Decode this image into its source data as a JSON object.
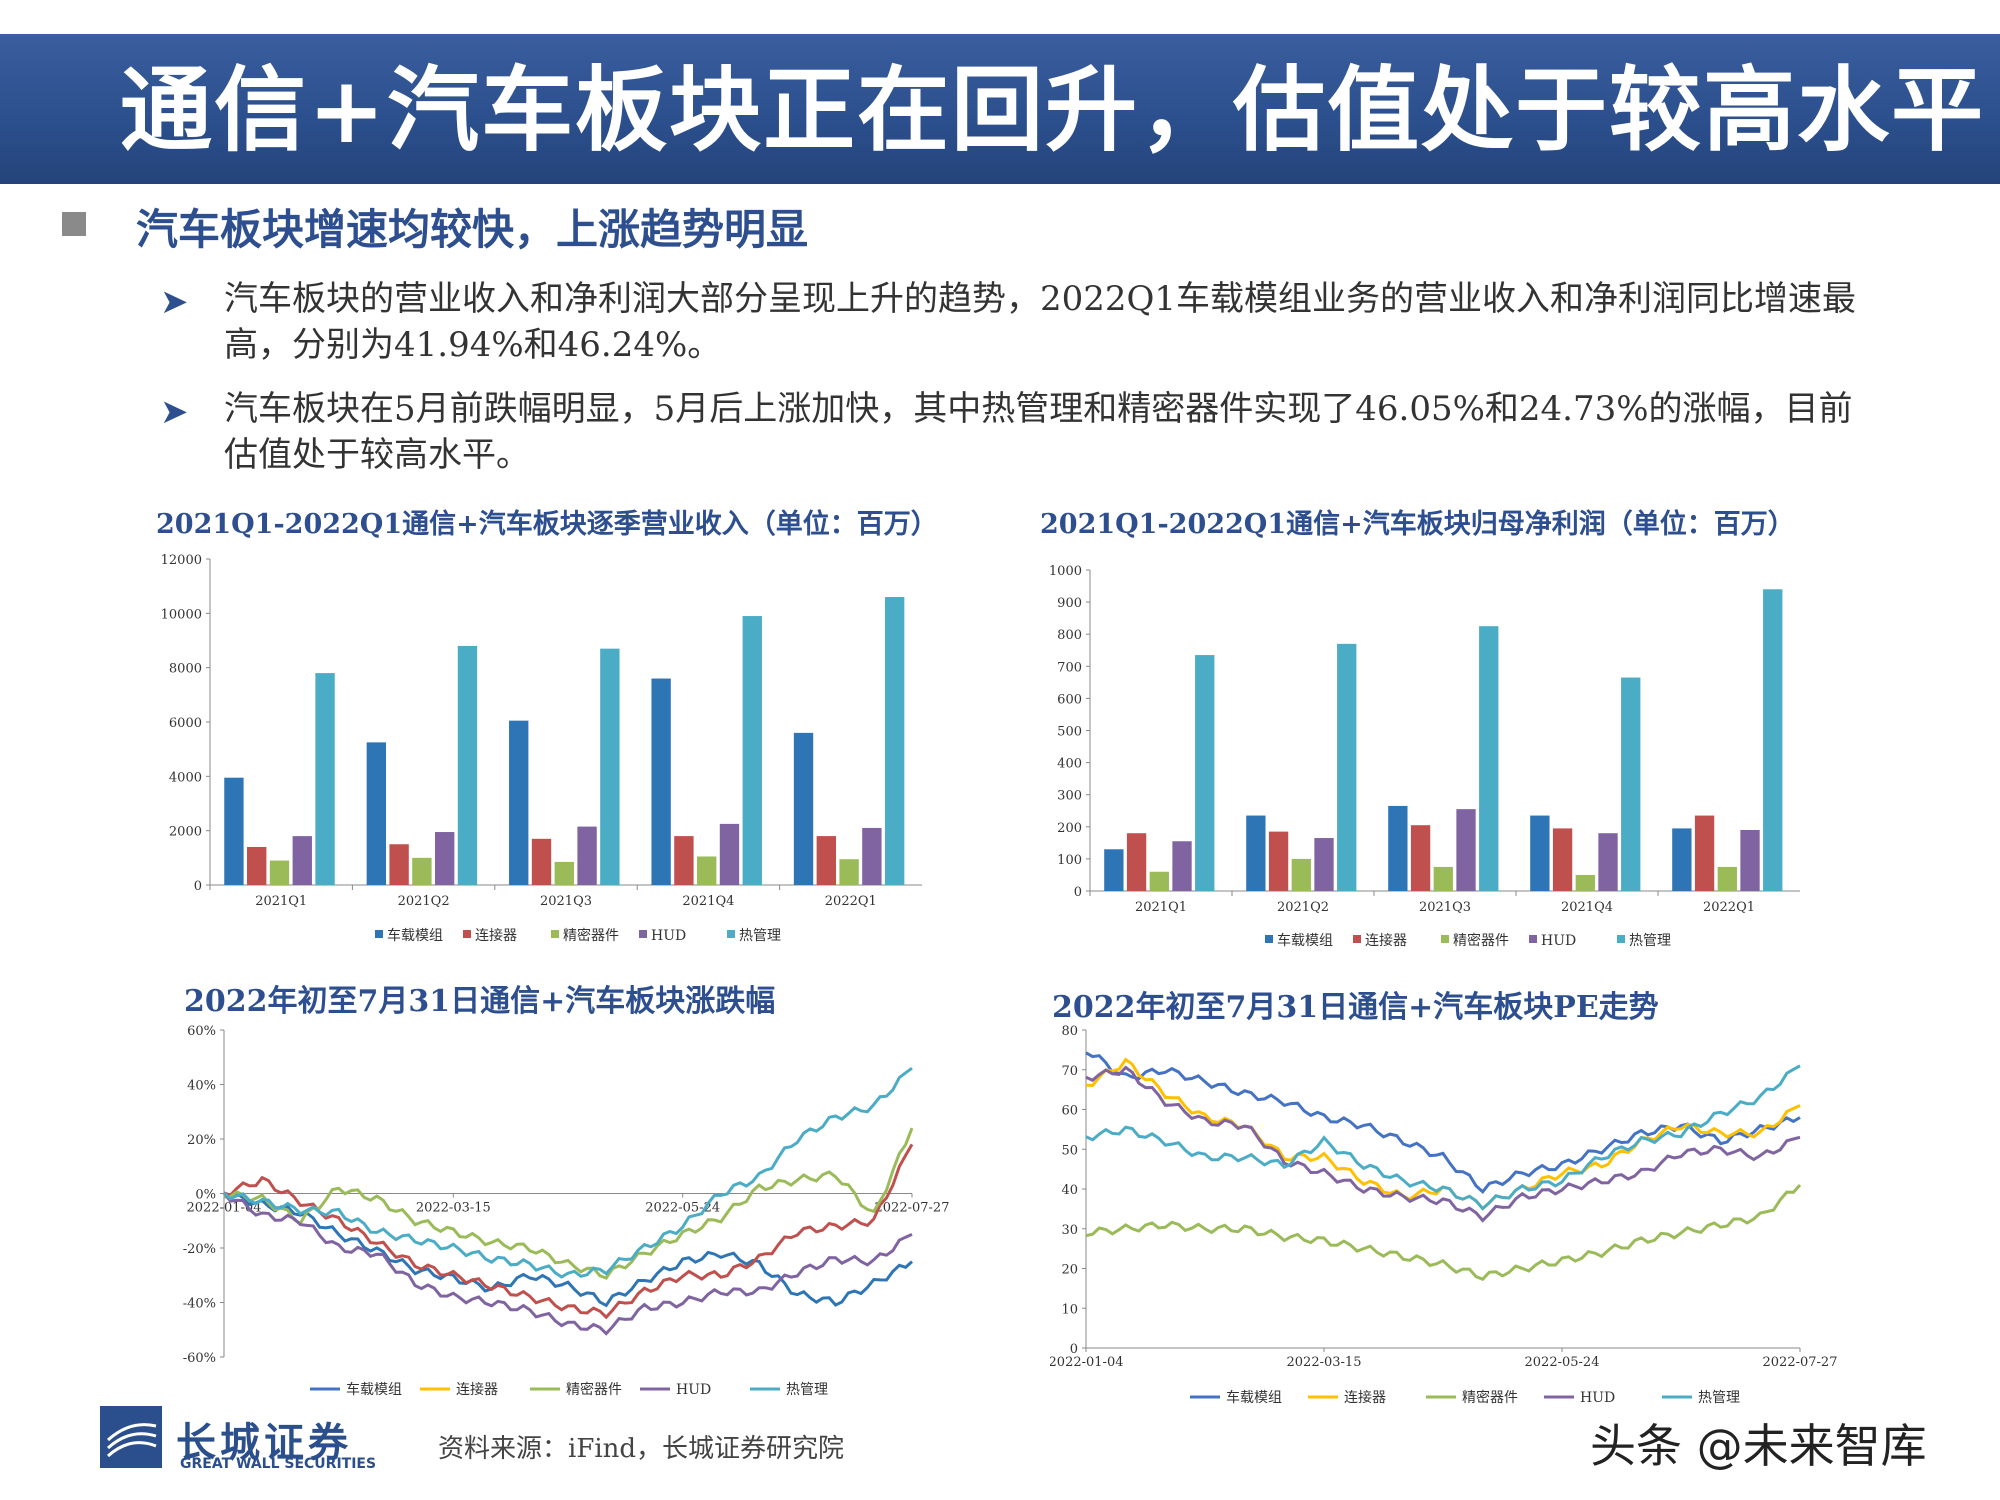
{
  "title": "通信+汽车板块正在回升，估值处于较高水平",
  "subheading": "汽车板块增速均较快，上涨趋势明显",
  "paragraphs": [
    "汽车板块的营业收入和净利润大部分呈现上升的趋势，2022Q1车载模组业务的营业收入和净利润同比增速最高，分别为41.94%和46.24%。",
    "汽车板块在5月前跌幅明显，5月后上涨加快，其中热管理和精密器件实现了46.05%和24.73%的涨幅，目前估值处于较高水平。"
  ],
  "bullet_icon": "arrow-bullet-icon",
  "source_text": "资料来源：iFind，长城证券研究院",
  "logo": {
    "cn": "长城证券",
    "en": "GREAT WALL SECURITIES"
  },
  "watermark": "头条 @未来智库",
  "colors": {
    "车载模组": "#2e75b6",
    "连接器": "#c0504d",
    "精密器件": "#9bbb59",
    "HUD": "#8064a2",
    "热管理": "#4bacc6",
    "line_车载模组": "#4472c4",
    "line_连接器": "#ffc000",
    "title_bar": "#2b4f8c"
  },
  "chart_data": [
    {
      "id": "revenue",
      "type": "bar",
      "title": "2021Q1-2022Q1通信+汽车板块逐季营业收入（单位：百万）",
      "categories": [
        "2021Q1",
        "2021Q2",
        "2021Q3",
        "2021Q4",
        "2022Q1"
      ],
      "series": [
        {
          "name": "车载模组",
          "values": [
            3950,
            5250,
            6050,
            7600,
            5600
          ]
        },
        {
          "name": "连接器",
          "values": [
            1400,
            1500,
            1700,
            1800,
            1800
          ]
        },
        {
          "name": "精密器件",
          "values": [
            900,
            1000,
            850,
            1050,
            950
          ]
        },
        {
          "name": "HUD",
          "values": [
            1800,
            1950,
            2150,
            2250,
            2100
          ]
        },
        {
          "name": "热管理",
          "values": [
            7800,
            8800,
            8700,
            9900,
            10600
          ]
        }
      ],
      "ylim": [
        0,
        12000
      ],
      "yticks": [
        "0",
        "2000",
        "4000",
        "6000",
        "8000",
        "10000",
        "12000"
      ]
    },
    {
      "id": "profit",
      "type": "bar",
      "title": "2021Q1-2022Q1通信+汽车板块归母净利润（单位：百万）",
      "categories": [
        "2021Q1",
        "2021Q2",
        "2021Q3",
        "2021Q4",
        "2022Q1"
      ],
      "series": [
        {
          "name": "车载模组",
          "values": [
            130,
            235,
            265,
            235,
            195
          ]
        },
        {
          "name": "连接器",
          "values": [
            180,
            185,
            205,
            195,
            235
          ]
        },
        {
          "name": "精密器件",
          "values": [
            60,
            100,
            75,
            50,
            75
          ]
        },
        {
          "name": "HUD",
          "values": [
            155,
            165,
            255,
            180,
            190
          ]
        },
        {
          "name": "热管理",
          "values": [
            735,
            770,
            825,
            665,
            940
          ]
        }
      ],
      "ylim": [
        0,
        1000
      ],
      "yticks": [
        "0",
        "100",
        "200",
        "300",
        "400",
        "500",
        "600",
        "700",
        "800",
        "900",
        "1000"
      ]
    },
    {
      "id": "change",
      "type": "line",
      "title": "2022年初至7月31日通信+汽车板块涨跌幅",
      "x_ticks": [
        "2022-01-04",
        "2022-03-15",
        "2022-05-24",
        "2022-07-27"
      ],
      "yticks": [
        "-60%",
        "-40%",
        "-20%",
        "0%",
        "20%",
        "40%",
        "60%"
      ],
      "ylim": [
        -60,
        60
      ],
      "legend": [
        "车载模组",
        "连接器",
        "精密器件",
        "HUD",
        "热管理"
      ],
      "series": [
        {
          "name": "车载模组",
          "values": [
            0,
            -4,
            -7,
            -15,
            -21,
            -28,
            -31,
            -35,
            -30,
            -34,
            -40,
            -32,
            -25,
            -22,
            -26,
            -37,
            -40,
            -33,
            -25
          ]
        },
        {
          "name": "连接器",
          "values": [
            0,
            5,
            -3,
            -10,
            -18,
            -26,
            -30,
            -34,
            -38,
            -42,
            -44,
            -36,
            -30,
            -30,
            -24,
            -14,
            -12,
            -10,
            18
          ]
        },
        {
          "name": "精密器件",
          "values": [
            0,
            -2,
            -10,
            2,
            -2,
            -10,
            -14,
            -18,
            -20,
            -26,
            -30,
            -22,
            -15,
            -9,
            2,
            5,
            7,
            -8,
            24
          ]
        },
        {
          "name": "HUD",
          "values": [
            0,
            -8,
            -10,
            -20,
            -22,
            -33,
            -38,
            -40,
            -43,
            -48,
            -50,
            -42,
            -40,
            -36,
            -36,
            -29,
            -24,
            -25,
            -15
          ]
        },
        {
          "name": "热管理",
          "values": [
            0,
            -3,
            -6,
            -7,
            -14,
            -17,
            -20,
            -24,
            -26,
            -30,
            -28,
            -20,
            -12,
            0,
            6,
            20,
            28,
            32,
            46
          ]
        }
      ]
    },
    {
      "id": "pe",
      "type": "line",
      "title": "2022年初至7月31日通信+汽车板块PE走势",
      "x_ticks": [
        "2022-01-04",
        "2022-03-15",
        "2022-05-24",
        "2022-07-27"
      ],
      "yticks": [
        "0",
        "10",
        "20",
        "30",
        "40",
        "50",
        "60",
        "70",
        "80"
      ],
      "ylim": [
        0,
        80
      ],
      "legend": [
        "车载模组",
        "连接器",
        "精密器件",
        "HUD",
        "热管理"
      ],
      "series": [
        {
          "name": "车载模组",
          "values": [
            75,
            68,
            70,
            67,
            64,
            62,
            58,
            56,
            52,
            48,
            40,
            44,
            46,
            50,
            54,
            56,
            52,
            55,
            58
          ]
        },
        {
          "name": "连接器",
          "values": [
            66,
            72,
            64,
            58,
            56,
            48,
            48,
            42,
            38,
            40,
            36,
            40,
            44,
            46,
            52,
            56,
            54,
            54,
            61
          ]
        },
        {
          "name": "精密器件",
          "values": [
            29,
            30,
            31,
            30,
            30,
            28,
            27,
            25,
            23,
            21,
            18,
            20,
            22,
            24,
            27,
            29,
            31,
            33,
            41
          ]
        },
        {
          "name": "HUD",
          "values": [
            68,
            70,
            62,
            57,
            56,
            47,
            44,
            40,
            38,
            37,
            33,
            38,
            40,
            42,
            44,
            49,
            50,
            48,
            53
          ]
        },
        {
          "name": "热管理",
          "values": [
            53,
            55,
            52,
            48,
            48,
            46,
            52,
            46,
            42,
            40,
            36,
            40,
            42,
            48,
            52,
            54,
            59,
            63,
            71
          ]
        }
      ]
    }
  ]
}
